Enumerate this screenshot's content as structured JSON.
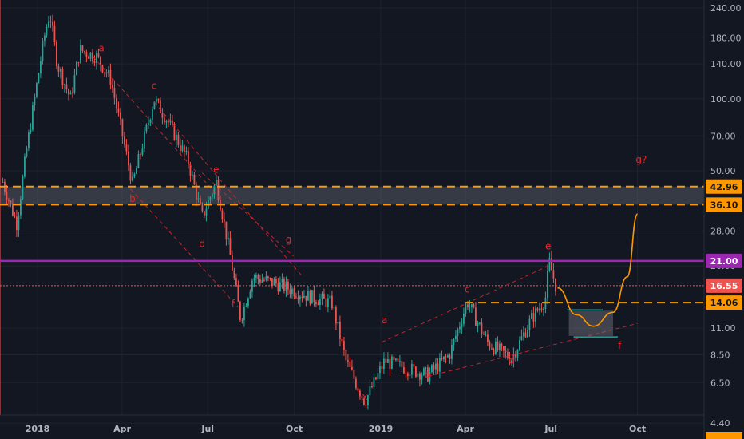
{
  "chart_data": {
    "type": "candlestick",
    "scale": "log",
    "ylim": [
      4.5,
      250
    ],
    "y_ticks": [
      "240.00",
      "180.00",
      "140.00",
      "100.00",
      "70.00",
      "50.00",
      "28.00",
      "20.00",
      "17.00",
      "11.00",
      "8.50",
      "6.50",
      "4.40"
    ],
    "x_ticks": [
      "2018",
      "Apr",
      "Jul",
      "Oct",
      "2019",
      "Apr",
      "Jul",
      "Oct"
    ],
    "grid": true,
    "colors": {
      "background": "#131722",
      "up": "#26a69a",
      "down": "#ef5350",
      "level": "#ff9800",
      "resistance": "#9c27b0",
      "wave_label": "#e0262d",
      "projection": "#ff9800",
      "axis_text": "#b2b5be"
    },
    "price_badges": [
      {
        "label": "42.96",
        "value": 42.96,
        "color": "#ff9800",
        "text_color": "#131722"
      },
      {
        "label": "36.10",
        "value": 36.1,
        "color": "#ff9800",
        "text_color": "#131722"
      },
      {
        "label": "21.00",
        "value": 21.0,
        "color": "#9c27b0",
        "text_color": "#ffffff"
      },
      {
        "label": "16.55",
        "value": 16.55,
        "color": "#ef5350",
        "text_color": "#ffffff"
      },
      {
        "label": "14.06",
        "value": 14.06,
        "color": "#ff9800",
        "text_color": "#131722"
      }
    ],
    "zone": {
      "low": 36.1,
      "high": 42.96
    },
    "horizontal_lines": [
      {
        "value": 42.96,
        "color": "#ff9800",
        "style": "dashed"
      },
      {
        "value": 36.1,
        "color": "#ff9800",
        "style": "dashed"
      },
      {
        "value": 21.0,
        "color": "#9c27b0",
        "style": "solid"
      },
      {
        "value": 16.55,
        "color": "#ef5350",
        "style": "dotted"
      },
      {
        "value": 14.06,
        "color": "#ff9800",
        "style": "dashed",
        "from": "2019-04"
      }
    ],
    "wave_labels": [
      {
        "text": "a",
        "date": "2018-03-10",
        "price": 158
      },
      {
        "text": "b",
        "date": "2018-04-12",
        "price": 37
      },
      {
        "text": "c",
        "date": "2018-05-05",
        "price": 110
      },
      {
        "text": "d",
        "date": "2018-06-25",
        "price": 24
      },
      {
        "text": "e",
        "date": "2018-07-10",
        "price": 49
      },
      {
        "text": "f",
        "date": "2018-07-28",
        "price": 13.5
      },
      {
        "text": "g",
        "date": "2018-09-25",
        "price": 25
      },
      {
        "text": "x",
        "date": "2018-12-15",
        "price": 5.5
      },
      {
        "text": "a",
        "date": "2019-01-05",
        "price": 11.5
      },
      {
        "text": "b",
        "date": "2019-02-20",
        "price": 6.8
      },
      {
        "text": "c",
        "date": "2019-04-03",
        "price": 15.5
      },
      {
        "text": "d",
        "date": "2019-05-20",
        "price": 7.8
      },
      {
        "text": "e",
        "date": "2019-06-28",
        "price": 23.5
      },
      {
        "text": "f",
        "date": "2019-09-12",
        "price": 9.0
      },
      {
        "text": "g?",
        "date": "2019-10-05",
        "price": 54
      }
    ]
  }
}
